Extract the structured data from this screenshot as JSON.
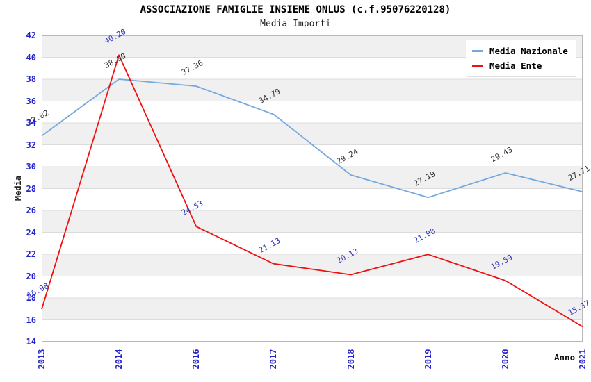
{
  "title": "ASSOCIAZIONE FAMIGLIE INSIEME ONLUS (c.f.95076220128)",
  "subtitle": "Media Importi",
  "colors": {
    "tick_label": "#2222CC",
    "grid_line": "#DCDCDC",
    "plot_border": "#B8B8B8",
    "band_gray": "#F0F0F0",
    "band_white": "#FFFFFF"
  },
  "legend": {
    "items": [
      {
        "label": "Media Nazionale"
      },
      {
        "label": "Media Ente"
      }
    ]
  },
  "chart_data": {
    "type": "line",
    "title": "ASSOCIAZIONE FAMIGLIE INSIEME ONLUS (c.f.95076220128)",
    "subtitle": "Media Importi",
    "xlabel": "Anno",
    "ylabel": "Media",
    "categories": [
      "2013",
      "2014",
      "2016",
      "2017",
      "2018",
      "2019",
      "2020",
      "2021"
    ],
    "series": [
      {
        "name": "Media Nazionale",
        "color": "#74A9DF",
        "label_color": "#333333",
        "values": [
          32.82,
          38.0,
          37.36,
          34.79,
          29.24,
          27.19,
          29.43,
          27.71
        ],
        "labels": [
          "32.82",
          "38.00",
          "37.36",
          "34.79",
          "29.24",
          "27.19",
          "29.43",
          "27.71"
        ]
      },
      {
        "name": "Media Ente",
        "color": "#EE1111",
        "label_color": "#3333BB",
        "values": [
          16.98,
          40.2,
          24.53,
          21.13,
          20.13,
          21.98,
          19.59,
          15.37
        ],
        "labels": [
          "16.98",
          "40.20",
          "24.53",
          "21.13",
          "20.13",
          "21.98",
          "19.59",
          "15.37"
        ]
      }
    ],
    "ylim": [
      14,
      42
    ],
    "ytick_step": 2,
    "ytick_labels": [
      "14",
      "16",
      "18",
      "20",
      "22",
      "24",
      "26",
      "28",
      "30",
      "32",
      "34",
      "36",
      "38",
      "40",
      "42"
    ],
    "grid": true,
    "banded_background": true,
    "legend_position": "top-right"
  }
}
